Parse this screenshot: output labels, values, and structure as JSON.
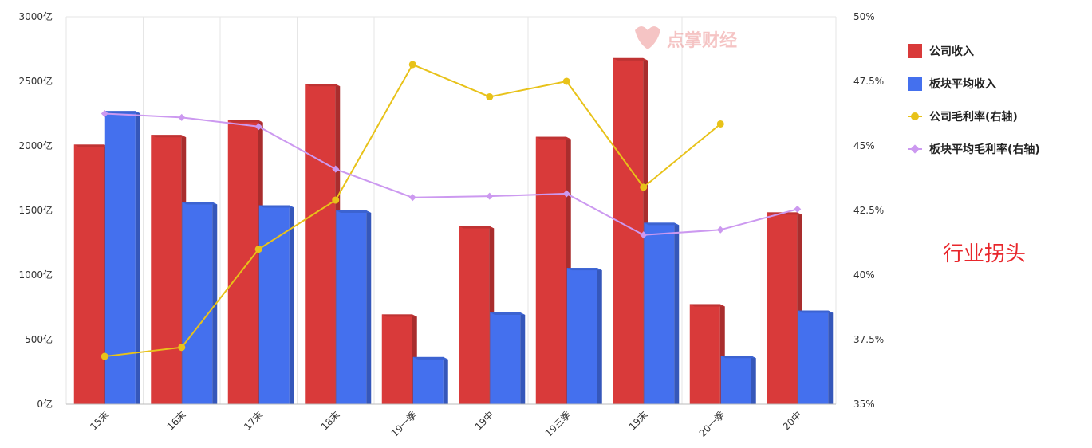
{
  "chart_data": {
    "type": "bar",
    "categories": [
      "15末",
      "16末",
      "17末",
      "18末",
      "19一季",
      "19中",
      "19三季",
      "19末",
      "20一季",
      "20中"
    ],
    "series": [
      {
        "name": "公司收入",
        "kind": "bar",
        "axis": "left",
        "color": "#d93a3a",
        "values": [
          2010,
          2085,
          2200,
          2480,
          695,
          1380,
          2070,
          2680,
          775,
          1485
        ]
      },
      {
        "name": "板块平均收入",
        "kind": "bar",
        "axis": "left",
        "color": "#4470ee",
        "values": [
          2270,
          1565,
          1540,
          1500,
          365,
          710,
          1055,
          1405,
          375,
          725
        ]
      },
      {
        "name": "公司毛利率(右轴)",
        "kind": "line",
        "axis": "right",
        "color": "#e8c219",
        "marker": "circle",
        "values": [
          36.85,
          37.2,
          41.0,
          42.9,
          48.15,
          46.9,
          47.5,
          43.4,
          45.85,
          null
        ]
      },
      {
        "name": "板块平均毛利率(右轴)",
        "kind": "line",
        "axis": "right",
        "color": "#cc99f0",
        "marker": "diamond",
        "values": [
          46.25,
          46.1,
          45.75,
          44.1,
          43.0,
          43.05,
          43.15,
          41.55,
          41.75,
          42.55
        ]
      }
    ],
    "y_left": {
      "min": 0,
      "max": 3000,
      "step": 500,
      "suffix": "亿"
    },
    "y_right": {
      "min": 35,
      "max": 50,
      "step": 2.5,
      "suffix": "%"
    },
    "ticks_left": [
      "0亿",
      "500亿",
      "1000亿",
      "1500亿",
      "2000亿",
      "2500亿",
      "3000亿"
    ],
    "ticks_right": [
      "35%",
      "37.5%",
      "40%",
      "42.5%",
      "45%",
      "47.5%",
      "50%"
    ],
    "grid": "vertical",
    "legend_position": "right",
    "title": "",
    "xlabel": "",
    "ylabel": ""
  },
  "annotation": "行业拐头",
  "watermark_text": "点掌财经",
  "legend_icons": {
    "bar": "square-swatch",
    "line_circle": "circle-line-marker",
    "line_diamond": "diamond-line-marker"
  }
}
